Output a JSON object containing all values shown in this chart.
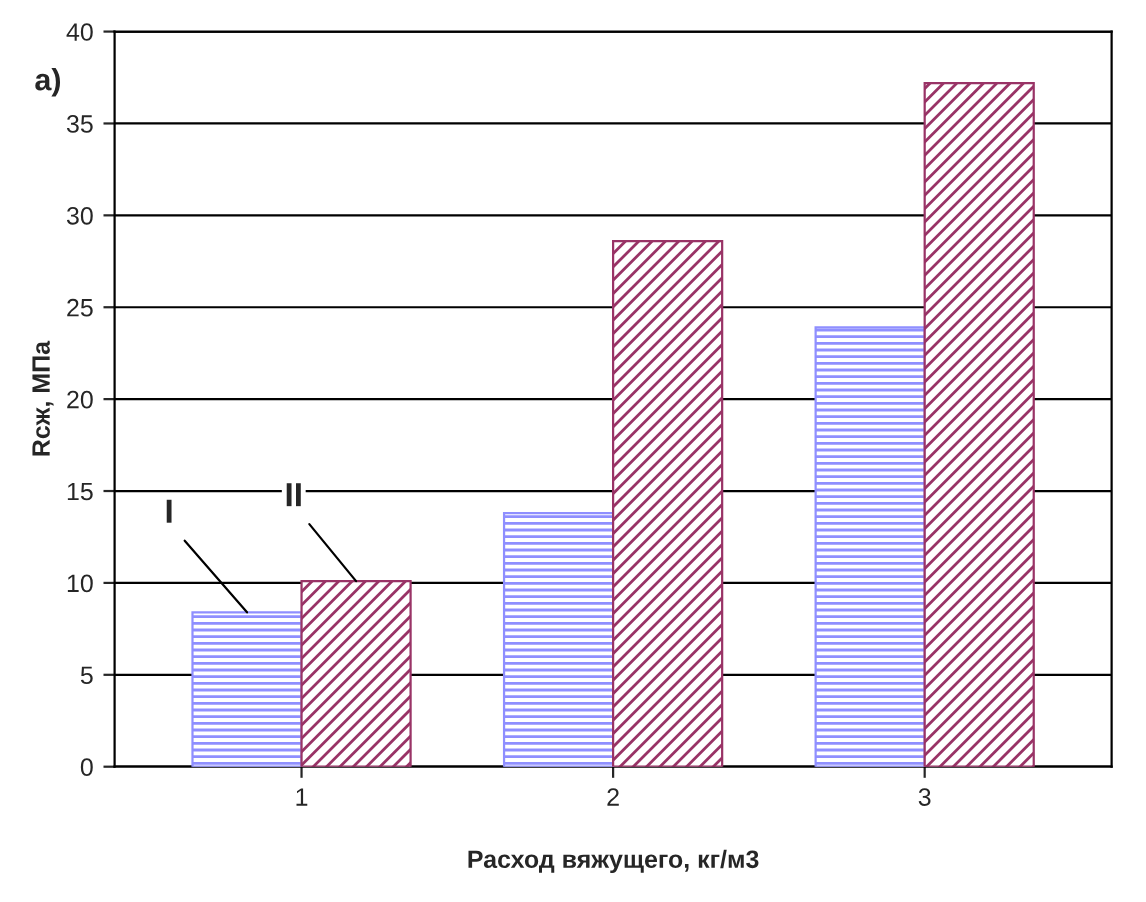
{
  "chart_data": {
    "type": "bar",
    "xlabel": "Расход вяжущего, кг/м3",
    "ylabel": "Rсж, МПа",
    "categories": [
      "1",
      "2",
      "3"
    ],
    "series": [
      {
        "name": "I",
        "color": "#8f8fff",
        "values": [
          8.4,
          13.8,
          23.9
        ]
      },
      {
        "name": "II",
        "color": "#993366",
        "values": [
          10.1,
          28.6,
          37.2
        ]
      }
    ],
    "ylim": [
      0,
      40
    ],
    "yticks": [
      0,
      5,
      10,
      15,
      20,
      25,
      30,
      35,
      40
    ],
    "grid": "y",
    "legend": false,
    "annotations": [
      "а)"
    ]
  }
}
